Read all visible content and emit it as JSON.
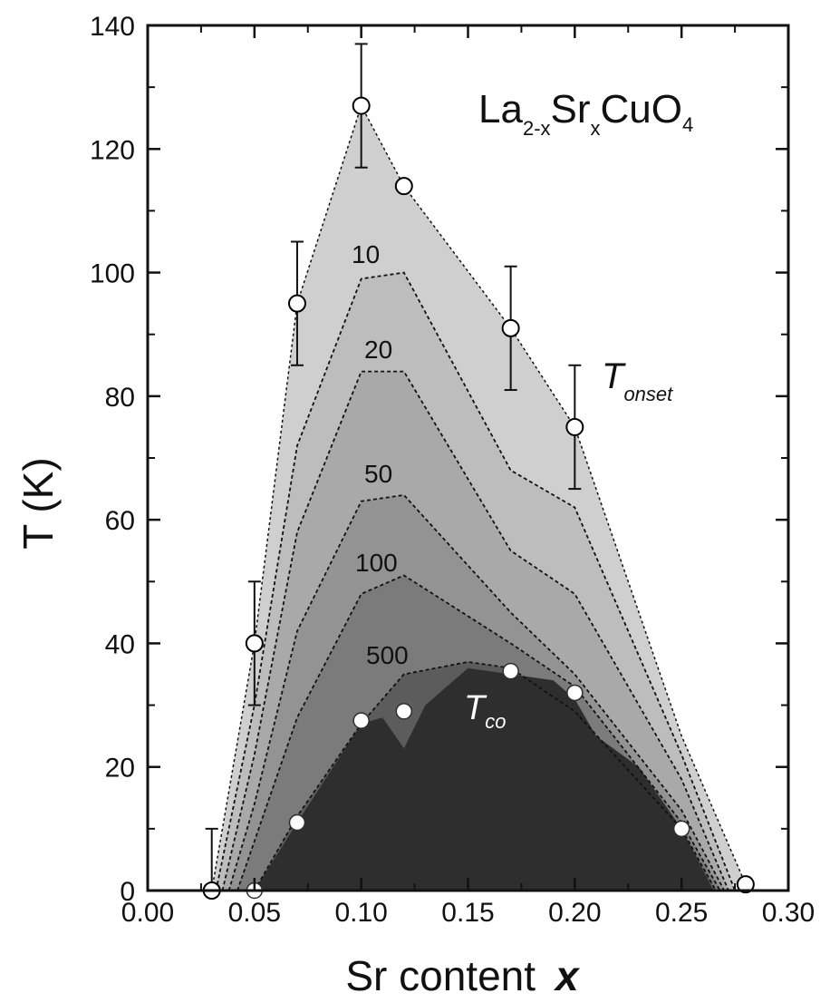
{
  "chart_data": {
    "type": "area",
    "xlabel_main": "Sr content",
    "xlabel_var": "x",
    "ylabel": "T (K)",
    "xlim": [
      0.0,
      0.3
    ],
    "ylim": [
      0,
      140
    ],
    "x_ticks": [
      "0.00",
      "0.05",
      "0.10",
      "0.15",
      "0.20",
      "0.25",
      "0.30"
    ],
    "y_ticks": [
      "0",
      "20",
      "40",
      "60",
      "80",
      "100",
      "120",
      "140"
    ],
    "annotation": {
      "base1": "La",
      "sub1": "2-x",
      "base2": "Sr",
      "sub2": "x",
      "base3": "CuO",
      "sub3": "4"
    },
    "tonset_label": {
      "base": "T",
      "sub": "onset"
    },
    "tco_label": {
      "base": "T",
      "sub": "co"
    },
    "contour_labels": [
      "10",
      "20",
      "50",
      "100",
      "500"
    ],
    "regions": [
      {
        "label": "Tonset",
        "fill": "#cfcfcf",
        "boundary": [
          [
            0.03,
            0
          ],
          [
            0.05,
            40
          ],
          [
            0.07,
            95
          ],
          [
            0.1,
            127
          ],
          [
            0.12,
            114
          ],
          [
            0.17,
            91
          ],
          [
            0.2,
            75
          ],
          [
            0.25,
            25
          ],
          [
            0.28,
            1
          ]
        ]
      },
      {
        "label": "10",
        "fill": "#bdbdbd",
        "boundary": [
          [
            0.032,
            0
          ],
          [
            0.05,
            30
          ],
          [
            0.07,
            72
          ],
          [
            0.1,
            99
          ],
          [
            0.12,
            100
          ],
          [
            0.17,
            68
          ],
          [
            0.2,
            62
          ],
          [
            0.25,
            22
          ],
          [
            0.275,
            0
          ]
        ]
      },
      {
        "label": "20",
        "fill": "#a9a9a9",
        "boundary": [
          [
            0.035,
            0
          ],
          [
            0.05,
            22
          ],
          [
            0.07,
            58
          ],
          [
            0.1,
            84
          ],
          [
            0.12,
            84
          ],
          [
            0.17,
            55
          ],
          [
            0.2,
            48
          ],
          [
            0.25,
            18
          ],
          [
            0.272,
            0
          ]
        ]
      },
      {
        "label": "50",
        "fill": "#939393",
        "boundary": [
          [
            0.038,
            0
          ],
          [
            0.05,
            14
          ],
          [
            0.07,
            42
          ],
          [
            0.1,
            63
          ],
          [
            0.12,
            64
          ],
          [
            0.17,
            45
          ],
          [
            0.2,
            35
          ],
          [
            0.25,
            13
          ],
          [
            0.27,
            0
          ]
        ]
      },
      {
        "label": "100",
        "fill": "#7b7b7b",
        "boundary": [
          [
            0.042,
            0
          ],
          [
            0.05,
            8
          ],
          [
            0.07,
            28
          ],
          [
            0.1,
            48
          ],
          [
            0.12,
            51
          ],
          [
            0.17,
            40
          ],
          [
            0.2,
            33
          ],
          [
            0.25,
            11
          ],
          [
            0.268,
            0
          ]
        ]
      },
      {
        "label": "500",
        "fill": "#5c5c5c",
        "boundary": [
          [
            0.05,
            0
          ],
          [
            0.07,
            12
          ],
          [
            0.1,
            27
          ],
          [
            0.12,
            35
          ],
          [
            0.15,
            37
          ],
          [
            0.17,
            36
          ],
          [
            0.2,
            29
          ],
          [
            0.25,
            10
          ],
          [
            0.266,
            0
          ]
        ]
      },
      {
        "label": "Tco",
        "fill": "#2e2e2e",
        "boundary": [
          [
            0.05,
            0
          ],
          [
            0.07,
            11
          ],
          [
            0.1,
            27
          ],
          [
            0.11,
            28
          ],
          [
            0.12,
            23
          ],
          [
            0.13,
            30
          ],
          [
            0.15,
            36
          ],
          [
            0.17,
            35
          ],
          [
            0.19,
            34
          ],
          [
            0.2,
            31
          ],
          [
            0.21,
            25
          ],
          [
            0.23,
            20
          ],
          [
            0.25,
            10
          ],
          [
            0.265,
            0
          ]
        ]
      }
    ],
    "dashed_contours": [
      "10",
      "20",
      "50",
      "100",
      "500"
    ],
    "tonset_points": {
      "x": [
        0.03,
        0.05,
        0.07,
        0.1,
        0.12,
        0.17,
        0.2,
        0.28
      ],
      "y": [
        0,
        40,
        95,
        127,
        114,
        91,
        75,
        1
      ],
      "err": [
        10,
        10,
        10,
        10,
        0,
        10,
        10,
        0
      ]
    },
    "tco_points": {
      "x": [
        0.05,
        0.07,
        0.1,
        0.12,
        0.17,
        0.2,
        0.25
      ],
      "y": [
        0,
        11,
        27.5,
        29,
        35.5,
        32,
        10
      ]
    },
    "colors": {
      "dark_region": "#2e2e2e",
      "open_marker_fill": "#ffffff",
      "marker_stroke": "#000000"
    }
  }
}
